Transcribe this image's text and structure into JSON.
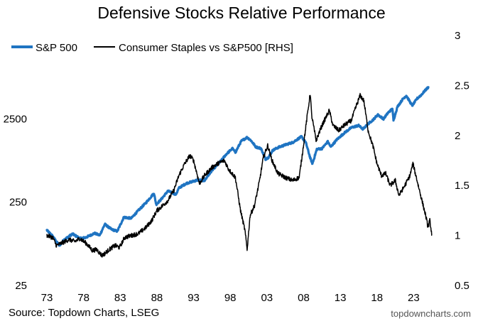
{
  "chart_data": {
    "type": "line",
    "title": "Defensive Stocks Relative Performance",
    "source": "Source: Topdown Charts, LSEG",
    "credit": "topdowncharts.com",
    "x_tick_labels": [
      "73",
      "78",
      "83",
      "88",
      "93",
      "98",
      "03",
      "08",
      "13",
      "18",
      "23"
    ],
    "x_tick_years": [
      1973,
      1978,
      1983,
      1988,
      1993,
      1998,
      2003,
      2008,
      2013,
      2018,
      2023
    ],
    "xlim": [
      1973,
      2028
    ],
    "y_left": {
      "scale": "log",
      "ylim": [
        25,
        25000
      ],
      "tick_values": [
        25,
        250,
        2500
      ],
      "tick_labels": [
        "25",
        "250",
        "2500"
      ]
    },
    "y_right": {
      "scale": "linear",
      "ylim": [
        0.5,
        3
      ],
      "tick_values": [
        0.5,
        1,
        1.5,
        2,
        2.5,
        3
      ],
      "tick_labels": [
        "0.5",
        "1",
        "1.5",
        "2",
        "2.5",
        "3"
      ]
    },
    "series": [
      {
        "name": "S&P 500",
        "axis": "left",
        "color": "#1f74c2",
        "points": [
          [
            1973,
            115
          ],
          [
            1973.7,
            100
          ],
          [
            1974.7,
            75
          ],
          [
            1975.3,
            88
          ],
          [
            1976.5,
            104
          ],
          [
            1977.5,
            92
          ],
          [
            1978.3,
            94
          ],
          [
            1979.5,
            106
          ],
          [
            1980.2,
            100
          ],
          [
            1980.9,
            136
          ],
          [
            1981.8,
            118
          ],
          [
            1982.6,
            112
          ],
          [
            1983.5,
            165
          ],
          [
            1984.5,
            160
          ],
          [
            1985.5,
            200
          ],
          [
            1986.5,
            245
          ],
          [
            1987.6,
            320
          ],
          [
            1987.9,
            235
          ],
          [
            1988.5,
            265
          ],
          [
            1989.5,
            340
          ],
          [
            1990.6,
            310
          ],
          [
            1991,
            370
          ],
          [
            1992,
            420
          ],
          [
            1993.5,
            460
          ],
          [
            1994.5,
            455
          ],
          [
            1995.5,
            600
          ],
          [
            1996.5,
            740
          ],
          [
            1997.5,
            950
          ],
          [
            1998.3,
            1100
          ],
          [
            1998.7,
            990
          ],
          [
            1999.5,
            1350
          ],
          [
            2000.3,
            1500
          ],
          [
            2000.8,
            1380
          ],
          [
            2001.5,
            1150
          ],
          [
            2002.2,
            1100
          ],
          [
            2002.8,
            820
          ],
          [
            2003.2,
            860
          ],
          [
            2003.8,
            1050
          ],
          [
            2004.5,
            1130
          ],
          [
            2005.5,
            1220
          ],
          [
            2006.5,
            1300
          ],
          [
            2007.7,
            1530
          ],
          [
            2008.3,
            1300
          ],
          [
            2008.9,
            850
          ],
          [
            2009.2,
            720
          ],
          [
            2009.8,
            1080
          ],
          [
            2010.5,
            1100
          ],
          [
            2011.3,
            1330
          ],
          [
            2011.7,
            1150
          ],
          [
            2012.5,
            1400
          ],
          [
            2013.5,
            1680
          ],
          [
            2014.5,
            1960
          ],
          [
            2015.5,
            2080
          ],
          [
            2016.1,
            1880
          ],
          [
            2016.8,
            2180
          ],
          [
            2017.5,
            2450
          ],
          [
            2018.1,
            2800
          ],
          [
            2018.9,
            2500
          ],
          [
            2019.5,
            2950
          ],
          [
            2020.1,
            3300
          ],
          [
            2020.25,
            2400
          ],
          [
            2020.8,
            3500
          ],
          [
            2021.5,
            4300
          ],
          [
            2022,
            4750
          ],
          [
            2022.8,
            3600
          ],
          [
            2023.5,
            4400
          ],
          [
            2024,
            4800
          ],
          [
            2024.5,
            5400
          ],
          [
            2025,
            6000
          ]
        ]
      },
      {
        "name": "Consumer Staples vs S&P500 [RHS]",
        "axis": "right",
        "color": "#000000",
        "points": [
          [
            1973,
            1.0
          ],
          [
            1973.8,
            0.98
          ],
          [
            1974.3,
            0.9
          ],
          [
            1975.2,
            0.93
          ],
          [
            1976,
            0.96
          ],
          [
            1976.8,
            0.94
          ],
          [
            1977.5,
            0.97
          ],
          [
            1978.4,
            0.92
          ],
          [
            1979.2,
            0.85
          ],
          [
            1979.8,
            0.86
          ],
          [
            1980.5,
            0.8
          ],
          [
            1980.9,
            0.82
          ],
          [
            1981.5,
            0.86
          ],
          [
            1982.3,
            0.9
          ],
          [
            1982.9,
            0.88
          ],
          [
            1983.6,
            0.98
          ],
          [
            1984.5,
            1.0
          ],
          [
            1985.5,
            1.02
          ],
          [
            1986.5,
            1.08
          ],
          [
            1987.3,
            1.15
          ],
          [
            1988,
            1.25
          ],
          [
            1988.8,
            1.3
          ],
          [
            1989.5,
            1.35
          ],
          [
            1990.3,
            1.45
          ],
          [
            1991,
            1.6
          ],
          [
            1991.8,
            1.72
          ],
          [
            1992.5,
            1.8
          ],
          [
            1993,
            1.75
          ],
          [
            1993.8,
            1.52
          ],
          [
            1994.5,
            1.6
          ],
          [
            1995.5,
            1.68
          ],
          [
            1996.3,
            1.72
          ],
          [
            1997.2,
            1.75
          ],
          [
            1997.8,
            1.66
          ],
          [
            1998.7,
            1.58
          ],
          [
            1999.4,
            1.25
          ],
          [
            2000,
            1.05
          ],
          [
            2000.3,
            0.86
          ],
          [
            2000.7,
            1.2
          ],
          [
            2001.3,
            1.3
          ],
          [
            2002,
            1.55
          ],
          [
            2002.5,
            1.78
          ],
          [
            2003.1,
            1.9
          ],
          [
            2003.7,
            1.75
          ],
          [
            2004.5,
            1.62
          ],
          [
            2005.5,
            1.58
          ],
          [
            2006.5,
            1.55
          ],
          [
            2007.4,
            1.58
          ],
          [
            2007.8,
            1.8
          ],
          [
            2008.5,
            2.2
          ],
          [
            2008.9,
            2.42
          ],
          [
            2009.1,
            2.2
          ],
          [
            2009.7,
            1.95
          ],
          [
            2010.5,
            2.1
          ],
          [
            2011.5,
            2.25
          ],
          [
            2012,
            2.1
          ],
          [
            2012.8,
            2.05
          ],
          [
            2013.5,
            2.1
          ],
          [
            2014.5,
            2.15
          ],
          [
            2015.2,
            2.3
          ],
          [
            2015.7,
            2.4
          ],
          [
            2016.2,
            2.35
          ],
          [
            2016.8,
            2.05
          ],
          [
            2017.5,
            1.88
          ],
          [
            2018,
            1.72
          ],
          [
            2018.6,
            1.6
          ],
          [
            2019.2,
            1.62
          ],
          [
            2019.8,
            1.5
          ],
          [
            2020.5,
            1.55
          ],
          [
            2021,
            1.4
          ],
          [
            2021.8,
            1.5
          ],
          [
            2022.5,
            1.6
          ],
          [
            2022.9,
            1.72
          ],
          [
            2023.3,
            1.6
          ],
          [
            2023.8,
            1.45
          ],
          [
            2024.3,
            1.3
          ],
          [
            2024.7,
            1.18
          ],
          [
            2024.95,
            1.08
          ],
          [
            2025.2,
            1.15
          ],
          [
            2025.5,
            1.0
          ]
        ]
      }
    ]
  }
}
